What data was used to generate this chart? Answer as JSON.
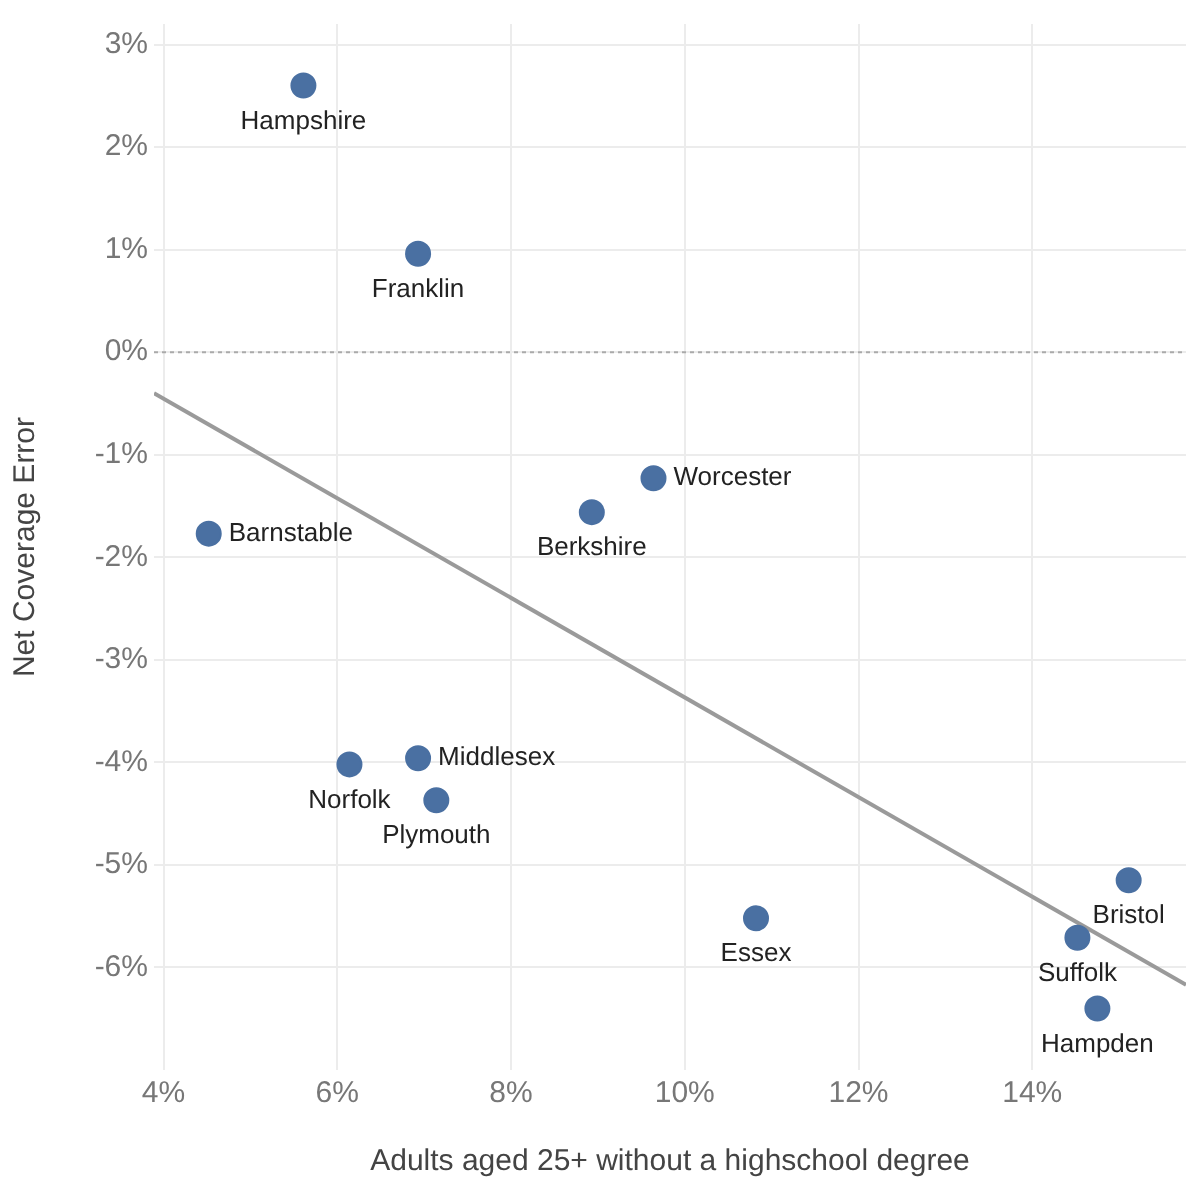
{
  "chart_data": {
    "type": "scatter",
    "xlabel": "Adults aged 25+ without a highschool degree",
    "ylabel": "Net Coverage Error",
    "xlim": [
      3.89,
      15.77
    ],
    "xticks": [
      {
        "value": 4,
        "label": "4%"
      },
      {
        "value": 6,
        "label": "6%"
      },
      {
        "value": 8,
        "label": "8%"
      },
      {
        "value": 10,
        "label": "10%"
      },
      {
        "value": 12,
        "label": "12%"
      },
      {
        "value": 14,
        "label": "14%"
      }
    ],
    "ylim": [
      -7,
      3.2
    ],
    "yticks": [
      {
        "value": -6,
        "label": "-6%"
      },
      {
        "value": -5,
        "label": "-5%"
      },
      {
        "value": -4,
        "label": "-4%"
      },
      {
        "value": -3,
        "label": "-3%"
      },
      {
        "value": -2,
        "label": "-2%"
      },
      {
        "value": -1,
        "label": "-1%"
      },
      {
        "value": 0,
        "label": "0%"
      },
      {
        "value": 1,
        "label": "1%"
      },
      {
        "value": 2,
        "label": "2%"
      },
      {
        "value": 3,
        "label": "3%"
      }
    ],
    "grid": true,
    "legend": false,
    "marker": "circle",
    "series": [
      {
        "color": "#4a70a2",
        "x": [
          5.61,
          6.93,
          9.64,
          8.93,
          4.52,
          6.93,
          6.14,
          7.14,
          10.82,
          15.11,
          14.52,
          14.75
        ],
        "values": [
          2.6,
          0.96,
          -1.23,
          -1.56,
          -1.77,
          -3.96,
          -4.02,
          -4.37,
          -5.52,
          -5.15,
          -5.71,
          -6.4
        ]
      },
      {
        "type": "line",
        "color": "#9a9a9a",
        "x": [
          3.89,
          15.77
        ],
        "values": [
          -0.4,
          -6.17
        ],
        "marker": "none",
        "line_style": "solid"
      }
    ],
    "ref_lines": [
      {
        "axis": "y",
        "value": 0,
        "color": "#aaaaaa",
        "line_style": "dotted"
      }
    ],
    "annotations": [
      {
        "text": "Hampshire",
        "x": 5.61,
        "y": 2.6
      },
      {
        "text": "Franklin",
        "x": 6.93,
        "y": 0.96
      },
      {
        "text": "Worcester",
        "x": 9.64,
        "y": -1.23
      },
      {
        "text": "Berkshire",
        "x": 8.93,
        "y": -1.56
      },
      {
        "text": "Barnstable",
        "x": 4.52,
        "y": -1.77
      },
      {
        "text": "Middlesex",
        "x": 6.93,
        "y": -3.96
      },
      {
        "text": "Norfolk",
        "x": 6.14,
        "y": -4.02
      },
      {
        "text": "Plymouth",
        "x": 7.14,
        "y": -4.37
      },
      {
        "text": "Essex",
        "x": 10.82,
        "y": -5.52
      },
      {
        "text": "Bristol",
        "x": 15.11,
        "y": -5.15
      },
      {
        "text": "Suffolk",
        "x": 14.52,
        "y": -5.71
      },
      {
        "text": "Hampden",
        "x": 14.75,
        "y": -6.4
      }
    ]
  }
}
